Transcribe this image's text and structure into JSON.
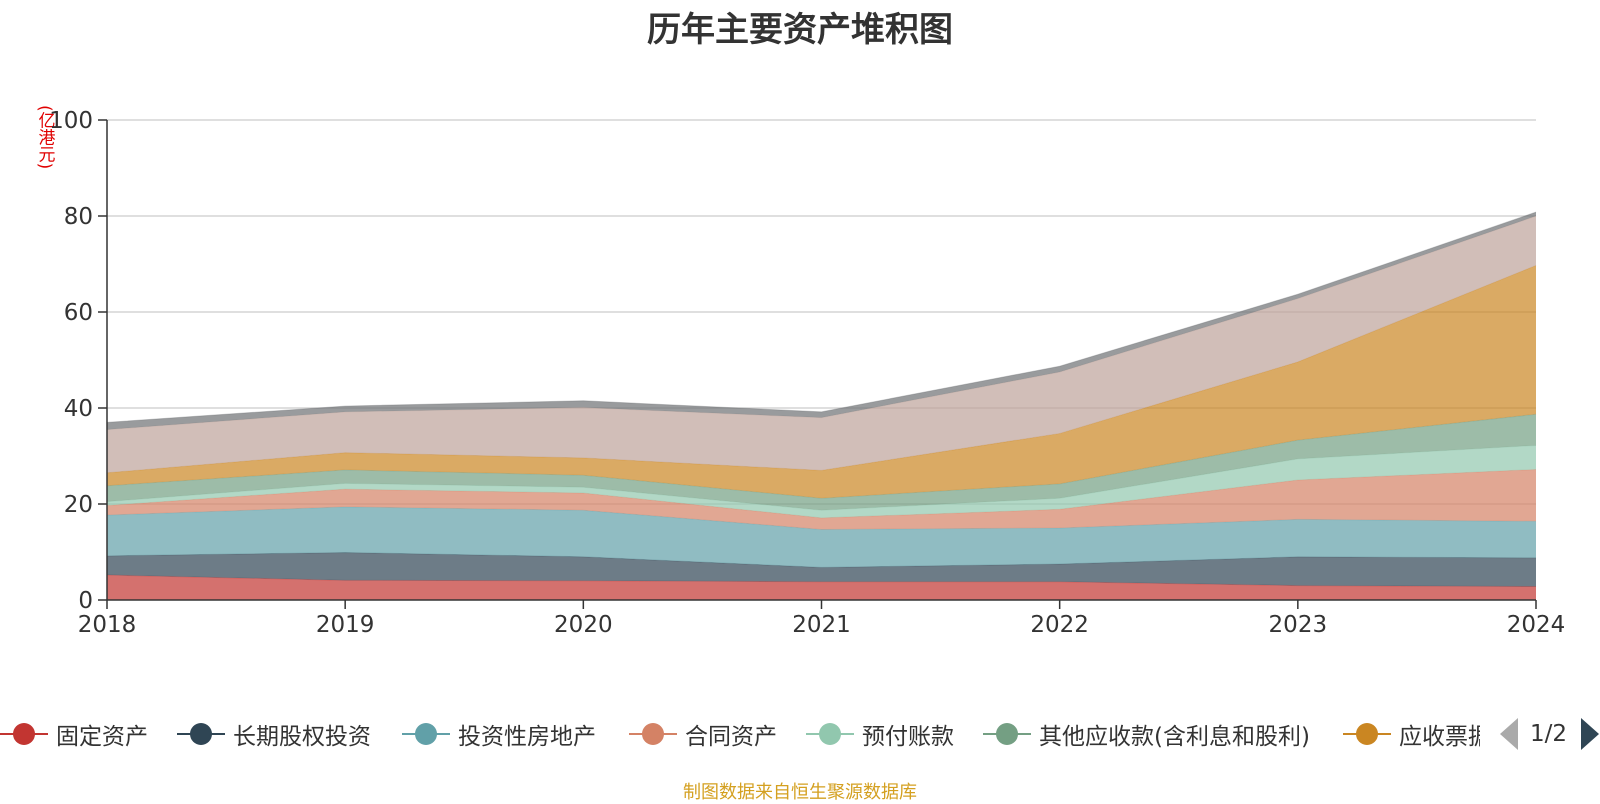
{
  "chart_data": {
    "type": "area",
    "stacked": true,
    "title": "历年主要资产堆积图",
    "unit_label": "(亿港元)",
    "ylim": [
      0,
      100
    ],
    "yticks": [
      0,
      20,
      40,
      60,
      80,
      100
    ],
    "grid": true,
    "legend_position": "bottom",
    "x": [
      "2018",
      "2019",
      "2020",
      "2021",
      "2022",
      "2023",
      "2024"
    ],
    "series": [
      {
        "name": "固定资产",
        "color": "#c23531",
        "values": [
          5.2,
          4.1,
          4.0,
          3.8,
          3.8,
          3.0,
          2.8
        ]
      },
      {
        "name": "长期股权投资",
        "color": "#2f4554",
        "values": [
          4.0,
          5.8,
          5.0,
          3.0,
          3.7,
          6.0,
          6.0
        ]
      },
      {
        "name": "投资性房地产",
        "color": "#61a0a8",
        "values": [
          8.5,
          9.5,
          9.7,
          7.9,
          7.5,
          7.8,
          7.6
        ]
      },
      {
        "name": "合同资产",
        "color": "#d48265",
        "values": [
          2.0,
          3.7,
          3.6,
          2.4,
          3.9,
          8.2,
          10.8
        ]
      },
      {
        "name": "预付账款",
        "color": "#91c7ae",
        "values": [
          0.8,
          1.2,
          1.2,
          1.6,
          2.3,
          4.4,
          5.0
        ]
      },
      {
        "name": "其他应收款(含利息和股利)",
        "color": "#749f83",
        "values": [
          3.3,
          2.8,
          2.5,
          2.5,
          3.0,
          3.9,
          6.5
        ]
      },
      {
        "name": "应收票据及应收账款",
        "color": "#ca8622",
        "values": [
          2.7,
          3.6,
          3.6,
          5.8,
          10.5,
          16.3,
          31.0
        ]
      },
      {
        "name": "",
        "color": "#bda29a",
        "values": [
          9.0,
          8.5,
          10.5,
          11.0,
          12.8,
          13.2,
          10.3
        ]
      },
      {
        "name": "",
        "color": "#6e7074",
        "values": [
          1.5,
          1.2,
          1.4,
          1.2,
          1.2,
          0.9,
          0.8
        ]
      }
    ]
  },
  "legend": {
    "items": [
      {
        "label": "固定资产",
        "color": "#c23531"
      },
      {
        "label": "长期股权投资",
        "color": "#2f4554"
      },
      {
        "label": "投资性房地产",
        "color": "#61a0a8"
      },
      {
        "label": "合同资产",
        "color": "#d48265"
      },
      {
        "label": "预付账款",
        "color": "#91c7ae"
      },
      {
        "label": "其他应收款(含利息和股利)",
        "color": "#749f83"
      },
      {
        "label": "应收票据及应收账款",
        "color": "#ca8622"
      }
    ],
    "page": "1/2"
  },
  "source": "制图数据来自恒生聚源数据库"
}
